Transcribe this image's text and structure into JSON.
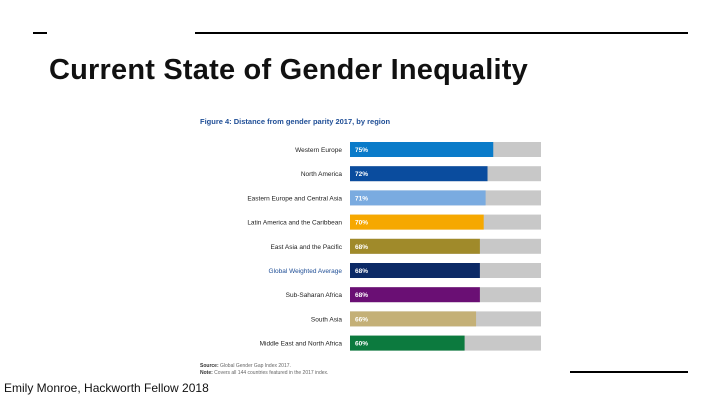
{
  "slide": {
    "title": "Current State of Gender Inequality",
    "footer": "Emily Monroe, Hackworth Fellow 2018"
  },
  "chart_data": {
    "type": "bar",
    "orientation": "horizontal",
    "title": "Figure 4: Distance from gender parity 2017, by region",
    "categories": [
      "Western Europe",
      "North America",
      "Eastern Europe and Central Asia",
      "Latin America and the Caribbean",
      "East Asia and the Pacific",
      "Global Weighted Average",
      "Sub-Saharan Africa",
      "South Asia",
      "Middle East and North Africa"
    ],
    "values": [
      75,
      72,
      71,
      70,
      68,
      68,
      68,
      66,
      60
    ],
    "labels": [
      "75%",
      "72%",
      "71%",
      "70%",
      "68%",
      "68%",
      "68%",
      "66%",
      "60%"
    ],
    "colors": [
      "#0a7bc9",
      "#0a4c9e",
      "#7aabe0",
      "#f6a800",
      "#a08a2a",
      "#0c2a66",
      "#6a0f74",
      "#c4b077",
      "#0c7a3e"
    ],
    "highlight_label_color": "#1f4e96",
    "background_bar_color": "#c8c8c8",
    "xlim": [
      0,
      100
    ],
    "grid": false,
    "source_label": "Source:",
    "source": "Global Gender Gap Index 2017.",
    "note_label": "Note:",
    "note": "Covers all 144 countries featured in the 2017 index."
  }
}
